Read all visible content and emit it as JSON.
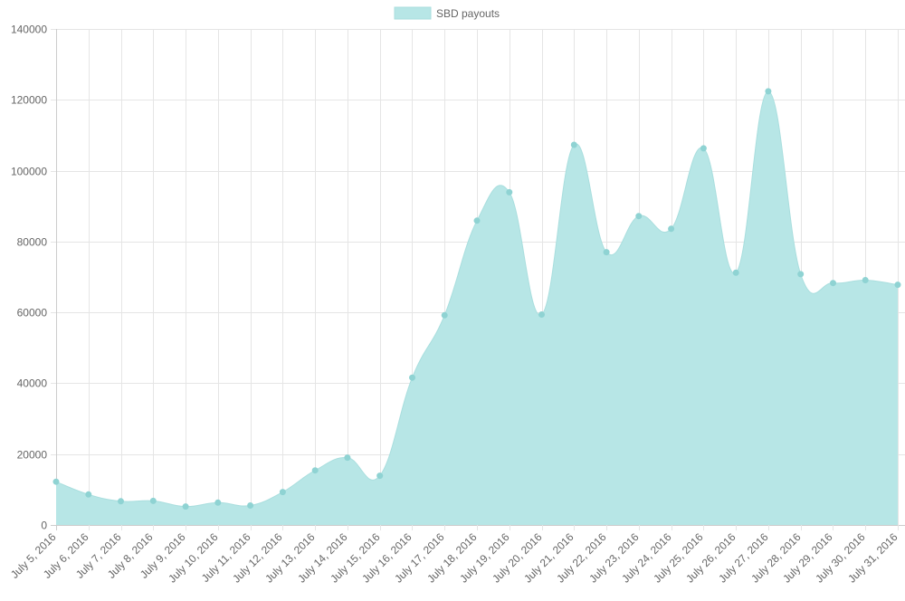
{
  "chart_data": {
    "type": "area",
    "series": [
      {
        "name": "SBD payouts",
        "values": [
          12200,
          8600,
          6700,
          6800,
          5200,
          6300,
          5500,
          9300,
          15400,
          19000,
          13900,
          41600,
          59200,
          85900,
          93900,
          59400,
          107300,
          77000,
          87200,
          83600,
          106300,
          71200,
          122400,
          70800,
          68300,
          69100,
          67800
        ]
      }
    ],
    "categories": [
      "July 5, 2016",
      "July 6, 2016",
      "July 7, 2016",
      "July 8, 2016",
      "July 9, 2016",
      "July 10, 2016",
      "July 11, 2016",
      "July 12, 2016",
      "July 13, 2016",
      "July 14, 2016",
      "July 15, 2016",
      "July 16, 2016",
      "July 17, 2016",
      "July 18, 2016",
      "July 19, 2016",
      "July 20, 2016",
      "July 21, 2016",
      "July 22, 2016",
      "July 23, 2016",
      "July 24, 2016",
      "July 25, 2016",
      "July 26, 2016",
      "July 27, 2016",
      "July 28, 2016",
      "July 29, 2016",
      "July 30, 2016",
      "July 31, 2016"
    ],
    "y_ticks": [
      "0",
      "20000",
      "40000",
      "60000",
      "80000",
      "100000",
      "120000",
      "140000"
    ],
    "ylim": [
      0,
      140000
    ],
    "grid": true,
    "legend": "top-center",
    "colors": {
      "fill": "#b7e6e6",
      "stroke": "#a9dede",
      "point": "#8fd3d3",
      "grid": "#e5e5e5",
      "axis": "#cccccc",
      "label": "#666666"
    }
  }
}
